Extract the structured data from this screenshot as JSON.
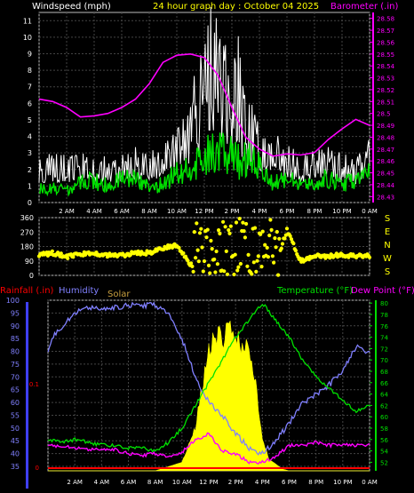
{
  "colors": {
    "windspeed": "#ffffff",
    "wind_gust": "#00e000",
    "barometer": "#ff00ff",
    "wind_dir": "#ffff00",
    "humidity": "#8080ff",
    "solar": "#ffff00",
    "temperature": "#00e000",
    "dew_point": "#ff00ff",
    "rainfall": "#ff0000",
    "grid": "#444444",
    "frame": "#bbbbbb"
  },
  "chart_data": [
    {
      "type": "line",
      "name": "wind_baro",
      "title": "24 hour graph day : October 04 2025",
      "ylabel_left": "Windspeed (mph)",
      "ylabel_right": "Barometer (.in)",
      "x_ticks": [
        "2 AM",
        "4 AM",
        "6 AM",
        "8 AM",
        "10 AM",
        "12 PM",
        "2 PM",
        "4 PM",
        "6 PM",
        "8 PM",
        "10 PM",
        "0 AM"
      ],
      "y_left_ticks": [
        "0",
        "1",
        "2",
        "3",
        "4",
        "5",
        "6",
        "7",
        "8",
        "9",
        "10",
        "11"
      ],
      "y_left_range": [
        0,
        11.5
      ],
      "y_right_ticks": [
        "28.43",
        "28.44",
        "28.45",
        "28.46",
        "28.47",
        "28.48",
        "28.49",
        "28.5",
        "28.51",
        "28.52",
        "28.53",
        "28.54",
        "28.55",
        "28.56",
        "28.57",
        "28.58"
      ],
      "y_right_range": [
        28.425,
        28.585
      ],
      "x_range": [
        0,
        24
      ],
      "series": [
        {
          "key": "windspeed",
          "x": [
            0,
            1,
            2,
            3,
            4,
            5,
            6,
            7,
            8,
            9,
            10,
            11,
            11.5,
            12,
            12.5,
            13,
            13.5,
            14,
            14.5,
            15,
            16,
            17,
            18,
            19,
            20,
            21,
            22,
            23,
            24
          ],
          "y": [
            2.0,
            2.3,
            2.1,
            2.2,
            2.4,
            2.0,
            2.2,
            2.5,
            2.4,
            2.7,
            3.3,
            4.3,
            6.0,
            7.0,
            8.8,
            7.7,
            7.5,
            6.7,
            7.1,
            4.5,
            3.4,
            3.2,
            2.8,
            2.3,
            2.4,
            2.5,
            2.2,
            2.0,
            3.0
          ]
        },
        {
          "key": "wind_gust",
          "x": [
            0,
            1,
            2,
            3,
            4,
            5,
            6,
            7,
            8,
            9,
            10,
            11,
            11.5,
            12,
            12.5,
            13,
            13.5,
            14,
            14.5,
            15,
            16,
            17,
            18,
            19,
            20,
            21,
            22,
            23,
            24
          ],
          "y": [
            0.8,
            0.9,
            0.7,
            1.2,
            1.3,
            1.0,
            1.4,
            1.5,
            0.9,
            1.1,
            1.8,
            2.0,
            2.3,
            2.8,
            3.3,
            3.0,
            3.2,
            2.8,
            2.5,
            2.7,
            2.1,
            1.2,
            1.5,
            1.0,
            1.2,
            1.4,
            1.1,
            1.3,
            2.4
          ]
        },
        {
          "key": "barometer",
          "x": [
            0,
            1,
            2,
            3,
            4,
            5,
            6,
            7,
            8,
            9,
            10,
            11,
            12,
            13,
            14,
            15,
            16,
            17,
            18,
            19,
            20,
            21,
            22,
            23,
            24
          ],
          "y": [
            28.512,
            28.51,
            28.505,
            28.497,
            28.498,
            28.5,
            28.505,
            28.512,
            28.525,
            28.543,
            28.549,
            28.55,
            28.547,
            28.532,
            28.505,
            28.48,
            28.47,
            28.464,
            28.466,
            28.465,
            28.467,
            28.478,
            28.487,
            28.495,
            28.49
          ]
        }
      ]
    },
    {
      "type": "scatter",
      "name": "wind_direction",
      "y_ticks": [
        "360",
        "270",
        "180",
        "90",
        "0"
      ],
      "y_right_labels": [
        "S",
        "E",
        "N",
        "W",
        "S"
      ],
      "y_range": [
        0,
        360
      ],
      "x_range": [
        0,
        24
      ],
      "series": [
        {
          "key": "wind_dir",
          "x": [
            0,
            1,
            2,
            3,
            4,
            5,
            6,
            7,
            8,
            9,
            10,
            11,
            12,
            13,
            14,
            15,
            16,
            17,
            18,
            19,
            20,
            21,
            22,
            23,
            24
          ],
          "y": [
            125,
            140,
            115,
            130,
            140,
            125,
            125,
            140,
            140,
            170,
            190,
            60,
            300,
            90,
            320,
            150,
            340,
            30,
            280,
            90,
            120,
            120,
            130,
            120,
            120
          ]
        }
      ]
    },
    {
      "type": "line",
      "name": "temp_humidity",
      "ylabel_left_1": "Rainfall (.in)",
      "ylabel_left_2": "Humidity",
      "ylabel_left_3": "Solar",
      "ylabel_right_1": "Temperature (°F)",
      "ylabel_right_2": "Dew Point (°F)",
      "x_ticks": [
        "2 AM",
        "4 AM",
        "6 AM",
        "8 AM",
        "10 AM",
        "12 PM",
        "2 PM",
        "4 PM",
        "6 PM",
        "8 PM",
        "10 PM",
        "0 AM"
      ],
      "humidity_ticks": [
        "100",
        "95",
        "90",
        "85",
        "80",
        "75",
        "70",
        "65",
        "60",
        "55",
        "50",
        "45",
        "40",
        "35"
      ],
      "humidity_range": [
        35,
        100
      ],
      "rain_ticks": [
        "0.1",
        "0"
      ],
      "rain_range": [
        0,
        0.2
      ],
      "temp_ticks": [
        "80",
        "78",
        "76",
        "74",
        "72",
        "70",
        "68",
        "66",
        "64",
        "62",
        "60",
        "58",
        "56",
        "54",
        "52"
      ],
      "temp_range": [
        50.5,
        80.5
      ],
      "x_range": [
        0,
        24
      ],
      "series": [
        {
          "key": "humidity",
          "axis": "humidity",
          "x": [
            0,
            0.5,
            1,
            2,
            3,
            4,
            5,
            6,
            7,
            8,
            9,
            10,
            11,
            12,
            13,
            14,
            15,
            16,
            17,
            18,
            19,
            20,
            21,
            22,
            23,
            24
          ],
          "y": [
            80,
            87,
            89,
            95,
            97,
            97,
            97,
            98,
            98,
            98,
            95,
            85,
            70,
            60,
            55,
            48,
            42,
            40,
            45,
            52,
            60,
            63,
            67,
            72,
            82,
            79
          ]
        },
        {
          "key": "temperature",
          "axis": "temp",
          "x": [
            0,
            1,
            2,
            3,
            4,
            5,
            6,
            7,
            8,
            9,
            10,
            11,
            12,
            13,
            14,
            15,
            16,
            17,
            18,
            19,
            20,
            21,
            22,
            23,
            24
          ],
          "y": [
            56,
            55.5,
            56,
            55.5,
            55,
            55,
            54.5,
            54.5,
            54,
            55.5,
            58,
            62,
            66,
            70,
            74,
            77,
            80,
            77,
            74,
            70,
            67,
            65,
            63,
            61,
            62
          ]
        },
        {
          "key": "dew_point",
          "axis": "temp",
          "x": [
            0,
            1,
            2,
            3,
            4,
            5,
            6,
            7,
            8,
            9,
            10,
            11,
            12,
            13,
            14,
            15,
            16,
            17,
            18,
            19,
            20,
            21,
            22,
            23,
            24
          ],
          "y": [
            55,
            54.8,
            54.5,
            54.2,
            54.4,
            54.2,
            53.5,
            53.2,
            53.5,
            53,
            53.8,
            56,
            57,
            54,
            53.5,
            52,
            52,
            53,
            55,
            55,
            55.5,
            55,
            55,
            55,
            55
          ]
        },
        {
          "key": "solar",
          "axis": "solar",
          "x": [
            0,
            8,
            10,
            11,
            11.5,
            12,
            12.5,
            13,
            13.5,
            14,
            14.5,
            15,
            15.5,
            16,
            16.5,
            17,
            17.5,
            18,
            24
          ],
          "y": [
            0,
            0,
            0.05,
            0.25,
            0.5,
            0.7,
            0.8,
            0.78,
            0.82,
            0.8,
            0.74,
            0.72,
            0.5,
            0.18,
            0.07,
            0.04,
            0.01,
            0,
            0
          ]
        },
        {
          "key": "rainfall",
          "axis": "rain",
          "x": [
            0,
            24
          ],
          "y": [
            0,
            0
          ]
        }
      ]
    }
  ]
}
